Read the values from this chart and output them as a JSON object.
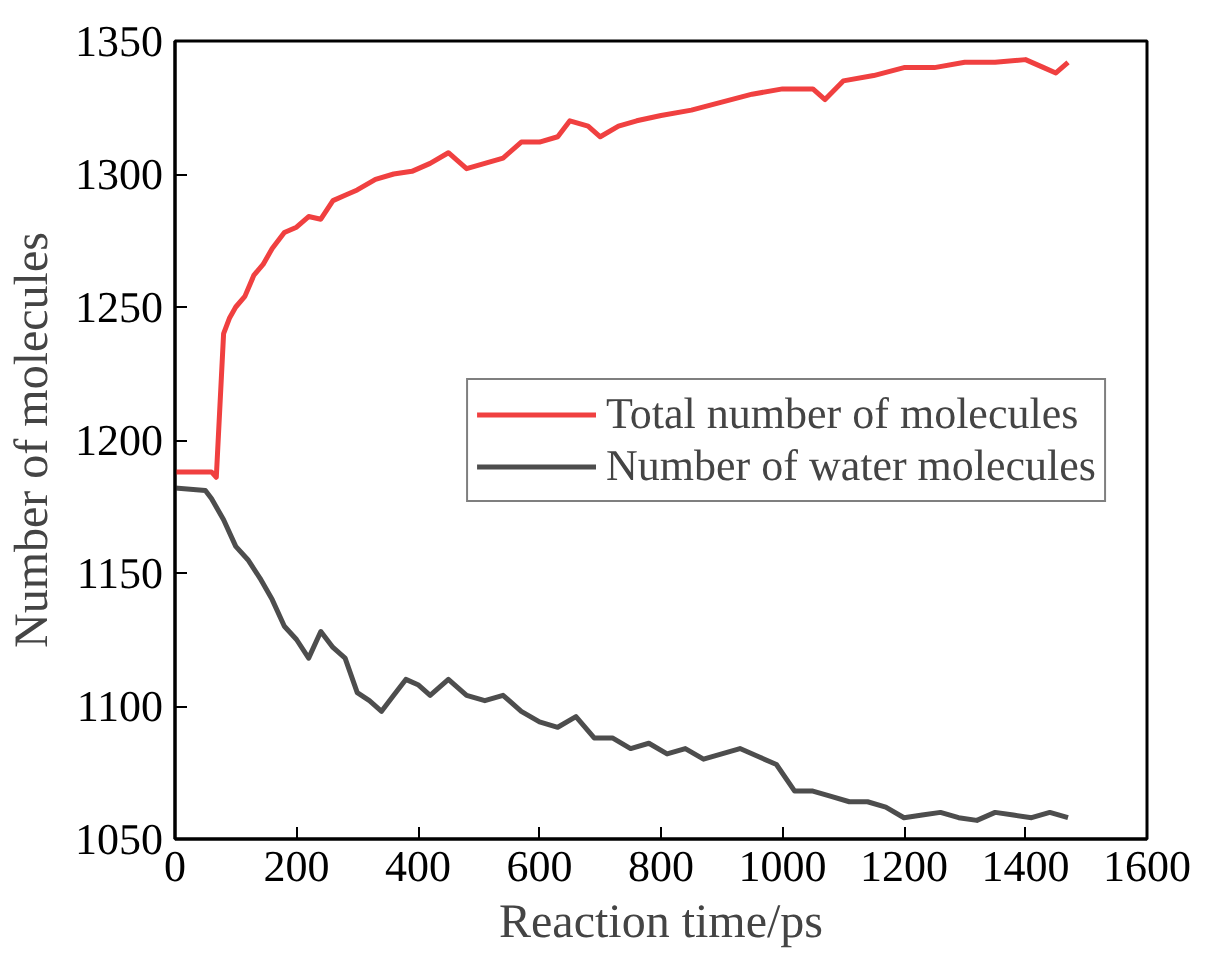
{
  "chart_data": {
    "type": "line",
    "xlabel": "Reaction time/ps",
    "ylabel": "Number of molecules",
    "xlim": [
      0,
      1600
    ],
    "ylim": [
      1050,
      1350
    ],
    "xticks": [
      0,
      200,
      400,
      600,
      800,
      1000,
      1200,
      1400,
      1600
    ],
    "yticks": [
      1050,
      1100,
      1150,
      1200,
      1250,
      1300,
      1350
    ],
    "grid": false,
    "legend": "right",
    "marker": "none",
    "line_style": "solid",
    "series": [
      {
        "name": "Total number of molecules",
        "color": "#f04040",
        "x": [
          0,
          60,
          68,
          80,
          90,
          100,
          115,
          130,
          145,
          160,
          180,
          200,
          220,
          240,
          260,
          280,
          300,
          330,
          360,
          390,
          420,
          450,
          480,
          510,
          540,
          570,
          600,
          630,
          650,
          680,
          700,
          730,
          760,
          800,
          850,
          900,
          950,
          1000,
          1050,
          1070,
          1100,
          1150,
          1200,
          1250,
          1300,
          1350,
          1400,
          1430,
          1450,
          1470
        ],
        "values": [
          1188,
          1188,
          1186,
          1240,
          1246,
          1250,
          1254,
          1262,
          1266,
          1272,
          1278,
          1280,
          1284,
          1283,
          1290,
          1292,
          1294,
          1298,
          1300,
          1301,
          1304,
          1308,
          1302,
          1304,
          1306,
          1312,
          1312,
          1314,
          1320,
          1318,
          1314,
          1318,
          1320,
          1322,
          1324,
          1327,
          1330,
          1332,
          1332,
          1328,
          1335,
          1337,
          1340,
          1340,
          1342,
          1342,
          1343,
          1340,
          1338,
          1342
        ]
      },
      {
        "name": "Number of water molecules",
        "color": "#4d4d4d",
        "x": [
          0,
          50,
          60,
          80,
          100,
          120,
          140,
          160,
          180,
          200,
          220,
          240,
          260,
          280,
          300,
          320,
          340,
          360,
          380,
          400,
          420,
          450,
          480,
          510,
          540,
          570,
          600,
          630,
          660,
          690,
          720,
          750,
          780,
          810,
          840,
          870,
          900,
          930,
          960,
          990,
          1020,
          1050,
          1080,
          1110,
          1140,
          1170,
          1200,
          1230,
          1260,
          1290,
          1320,
          1350,
          1380,
          1410,
          1440,
          1470
        ],
        "values": [
          1182,
          1181,
          1178,
          1170,
          1160,
          1155,
          1148,
          1140,
          1130,
          1125,
          1118,
          1128,
          1122,
          1118,
          1105,
          1102,
          1098,
          1104,
          1110,
          1108,
          1104,
          1110,
          1104,
          1102,
          1104,
          1098,
          1094,
          1092,
          1096,
          1088,
          1088,
          1084,
          1086,
          1082,
          1084,
          1080,
          1082,
          1084,
          1081,
          1078,
          1068,
          1068,
          1066,
          1064,
          1064,
          1062,
          1058,
          1059,
          1060,
          1058,
          1057,
          1060,
          1059,
          1058,
          1060,
          1058
        ]
      }
    ]
  }
}
